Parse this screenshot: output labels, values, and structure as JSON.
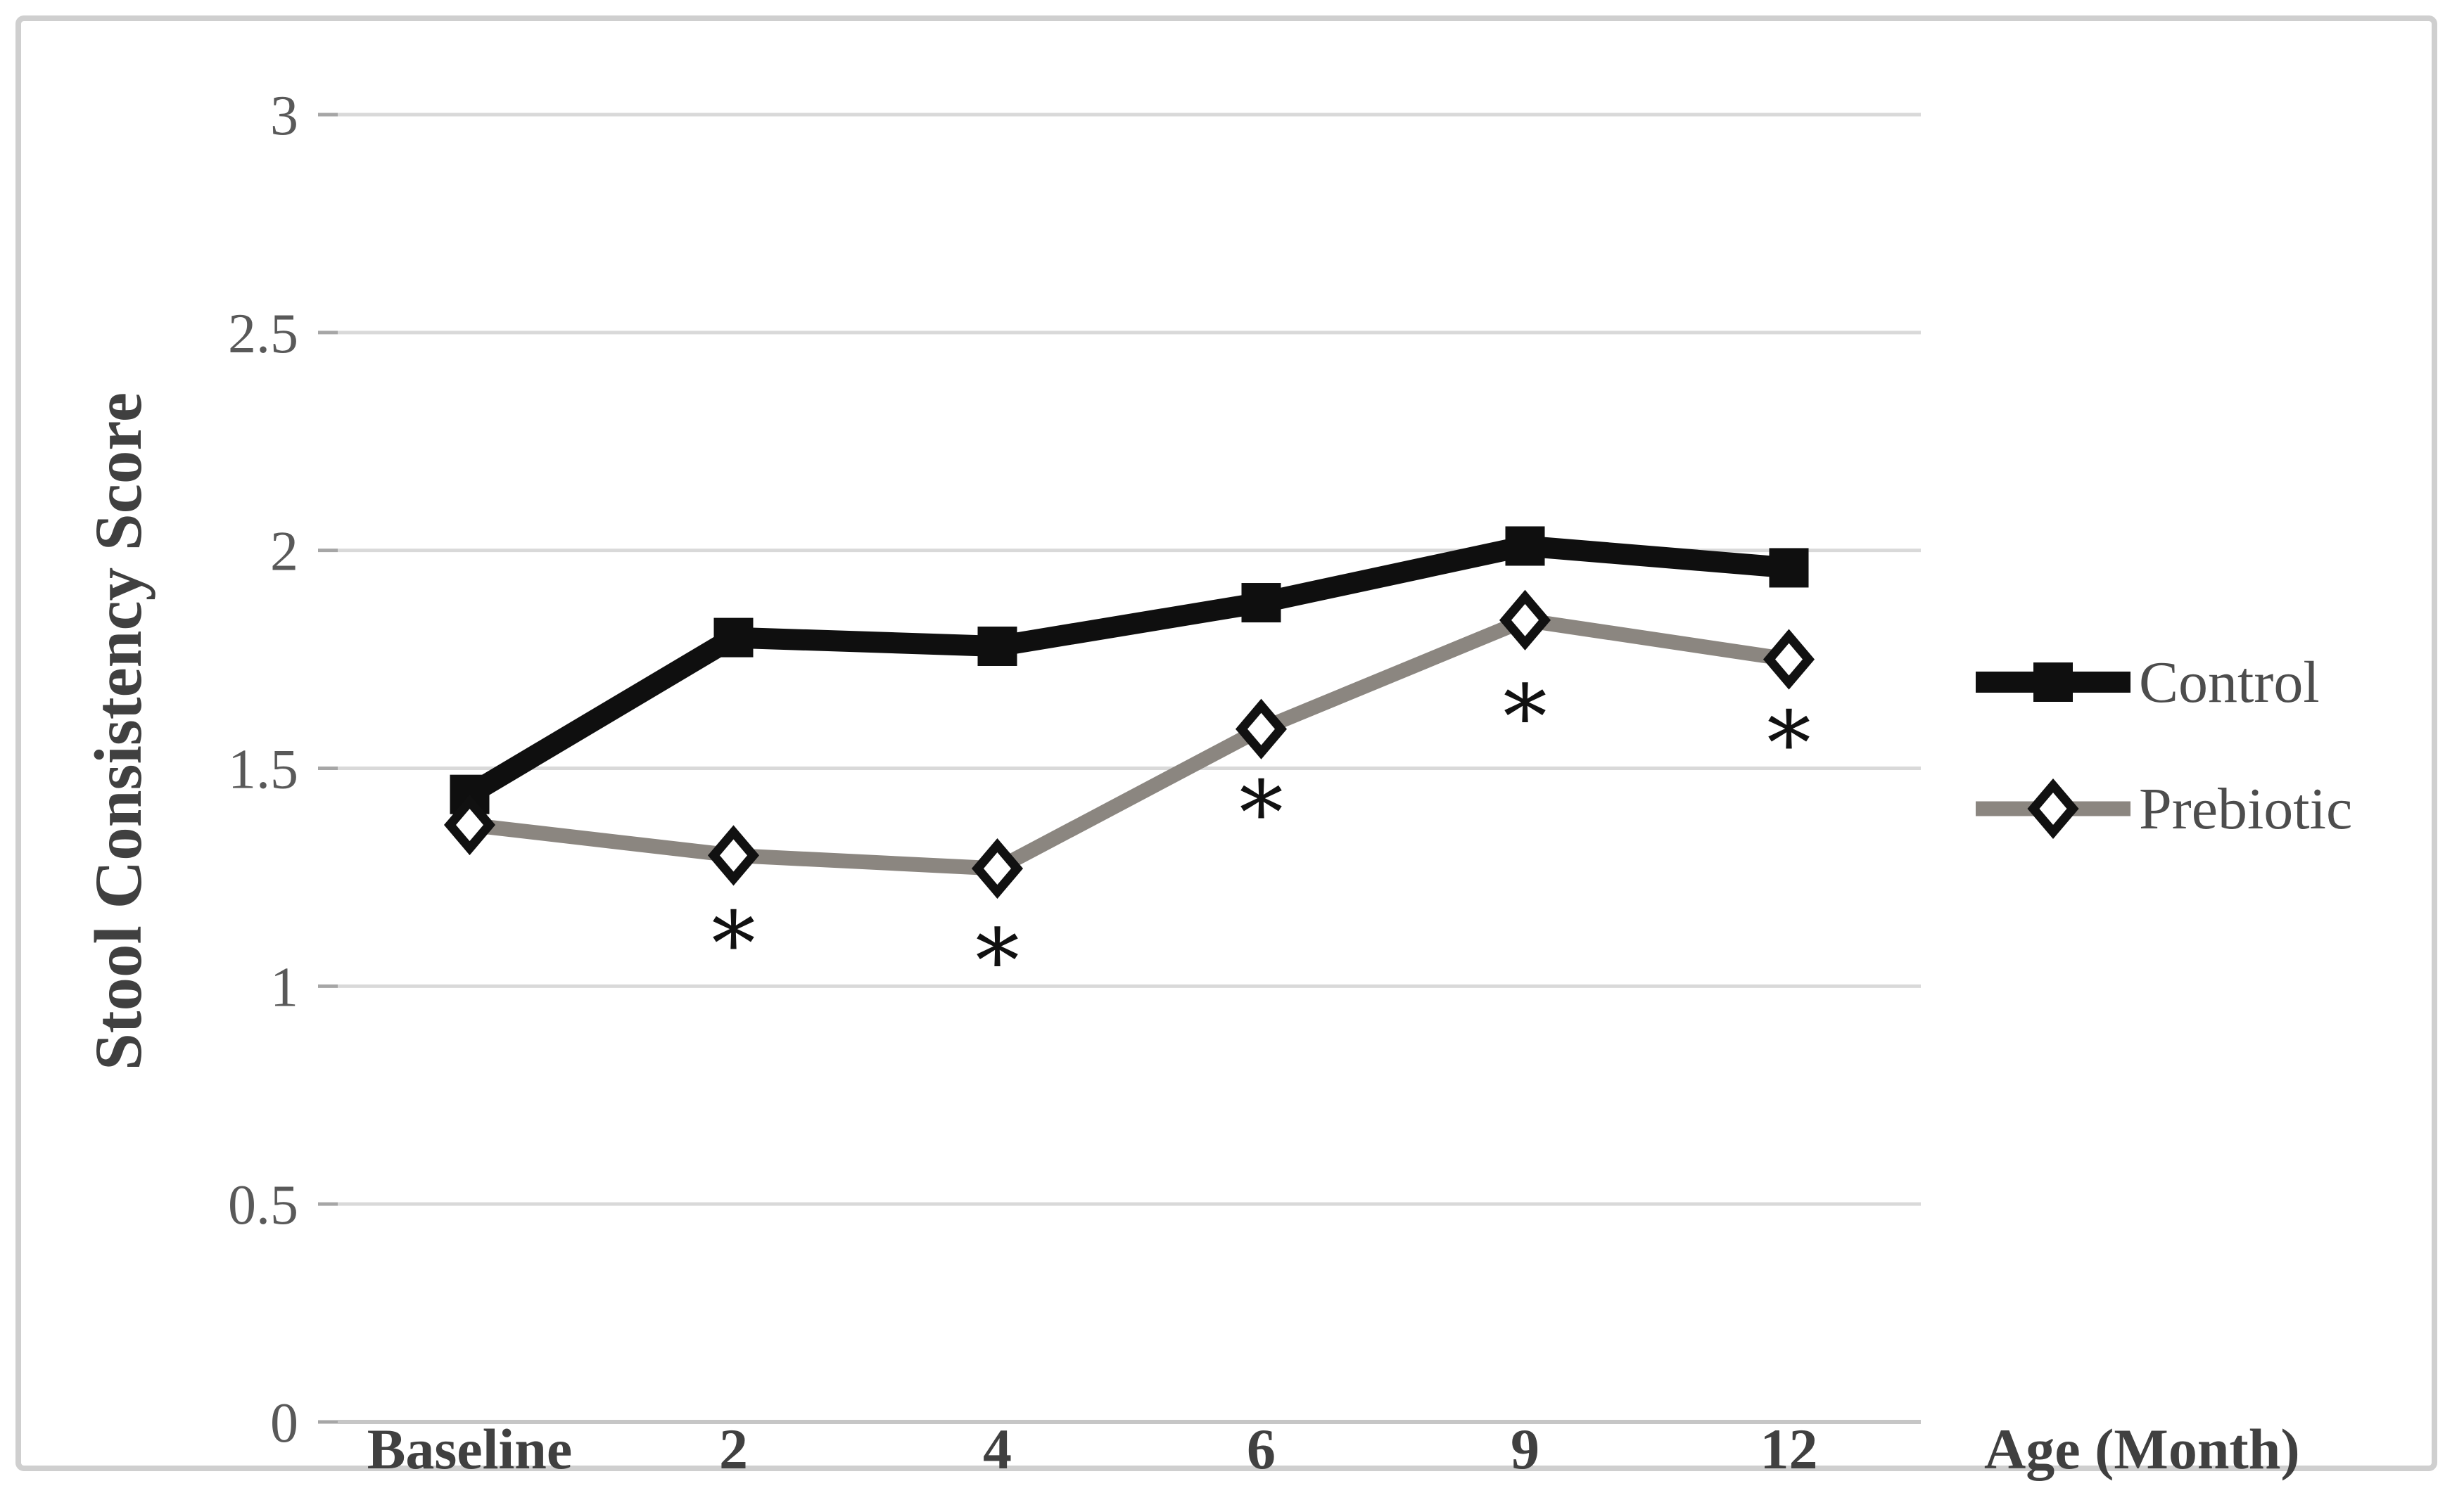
{
  "figure": {
    "background": "#ffffff",
    "border_color": "#cfcfcf"
  },
  "chart_data": {
    "type": "line",
    "title": "",
    "ylabel": "Stool Consistency Score",
    "xlabel": "Age (Month)",
    "categories": [
      "Baseline",
      "2",
      "4",
      "6",
      "9",
      "12"
    ],
    "ylim": [
      0,
      3
    ],
    "y_ticks": [
      0,
      0.5,
      1,
      1.5,
      2,
      2.5,
      3
    ],
    "y_tick_labels": [
      "0",
      "0.5",
      "1",
      "1.5",
      "2",
      "2.5",
      "3"
    ],
    "grid": true,
    "legend_position": "right-middle",
    "series": [
      {
        "name": "Control",
        "marker": "filled-square",
        "color": "#0f0f0f",
        "values": [
          1.44,
          1.8,
          1.78,
          1.88,
          2.01,
          1.96
        ]
      },
      {
        "name": "Prebiotic",
        "marker": "open-diamond",
        "color": "#8b8680",
        "marker_stroke": "#111111",
        "marker_fill": "#ffffff",
        "values": [
          1.37,
          1.3,
          1.27,
          1.59,
          1.84,
          1.75
        ]
      }
    ],
    "annotations": {
      "symbol": "*",
      "color": "#111111",
      "positions": [
        {
          "category": "2",
          "y": 1.1
        },
        {
          "category": "4",
          "y": 1.06
        },
        {
          "category": "6",
          "y": 1.4
        },
        {
          "category": "9",
          "y": 1.62
        },
        {
          "category": "12",
          "y": 1.56
        }
      ]
    },
    "colors": {
      "gridline": "#d9d9d9",
      "axis_line": "#c6c6c6",
      "tick": "#a6a6a6",
      "tick_label": "#595959",
      "axis_label": "#404040",
      "legend_text": "#4d4d4d"
    }
  }
}
